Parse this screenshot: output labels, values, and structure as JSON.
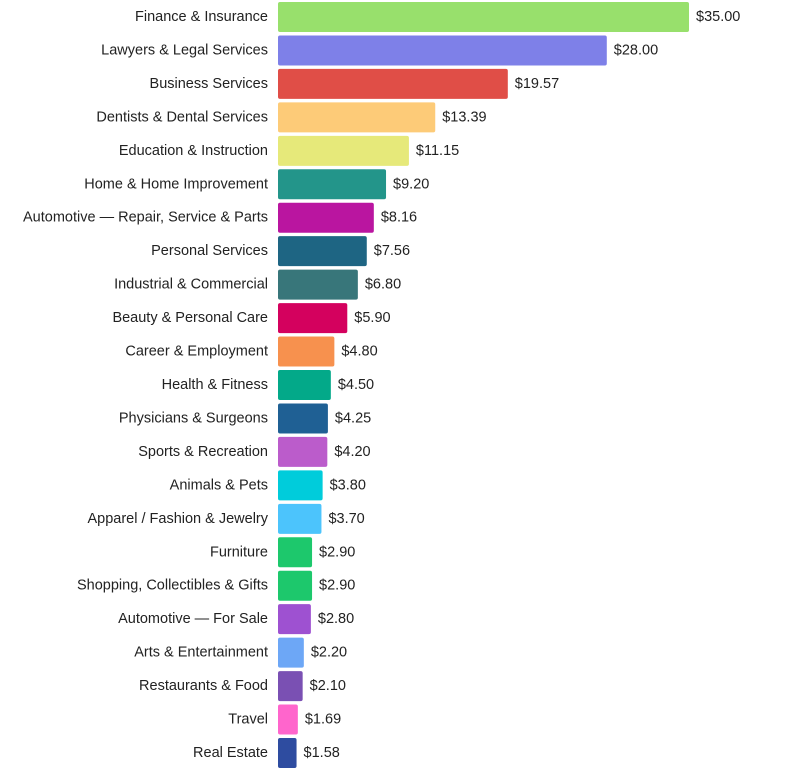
{
  "chart_data": {
    "type": "bar",
    "orientation": "horizontal",
    "title": "",
    "xlabel": "",
    "ylabel": "",
    "grid": false,
    "legend": "none",
    "xlim": [
      0,
      35
    ],
    "value_format": "currency-usd",
    "categories": [
      "Finance & Insurance",
      "Lawyers & Legal Services",
      "Business Services",
      "Dentists & Dental Services",
      "Education & Instruction",
      "Home & Home Improvement",
      "Automotive — Repair, Service & Parts",
      "Personal Services",
      "Industrial & Commercial",
      "Beauty & Personal Care",
      "Career & Employment",
      "Health & Fitness",
      "Physicians & Surgeons",
      "Sports & Recreation",
      "Animals & Pets",
      "Apparel / Fashion & Jewelry",
      "Furniture",
      "Shopping, Collectibles & Gifts",
      "Automotive — For Sale",
      "Arts & Entertainment",
      "Restaurants & Food",
      "Travel",
      "Real Estate"
    ],
    "values": [
      35.0,
      28.0,
      19.57,
      13.39,
      11.15,
      9.2,
      8.16,
      7.56,
      6.8,
      5.9,
      4.8,
      4.5,
      4.25,
      4.2,
      3.8,
      3.7,
      2.9,
      2.9,
      2.8,
      2.2,
      2.1,
      1.69,
      1.58
    ],
    "value_labels": [
      "$35.00",
      "$28.00",
      "$19.57",
      "$13.39",
      "$11.15",
      "$9.20",
      "$8.16",
      "$7.56",
      "$6.80",
      "$5.90",
      "$4.80",
      "$4.50",
      "$4.25",
      "$4.20",
      "$3.80",
      "$3.70",
      "$2.90",
      "$2.90",
      "$2.80",
      "$2.20",
      "$2.10",
      "$1.69",
      "$1.58"
    ],
    "colors": [
      "#98E06C",
      "#7E80E8",
      "#E04E47",
      "#FDCB78",
      "#E6E97A",
      "#23958A",
      "#BA15A0",
      "#1E6583",
      "#38767A",
      "#D4015E",
      "#F7914E",
      "#03A989",
      "#1F6094",
      "#BB5CCB",
      "#00CCDB",
      "#4CC4FC",
      "#1DC86C",
      "#1DC86C",
      "#9E51D1",
      "#6DA7F6",
      "#7A50B3",
      "#FF65CC",
      "#2E4CA0"
    ]
  }
}
